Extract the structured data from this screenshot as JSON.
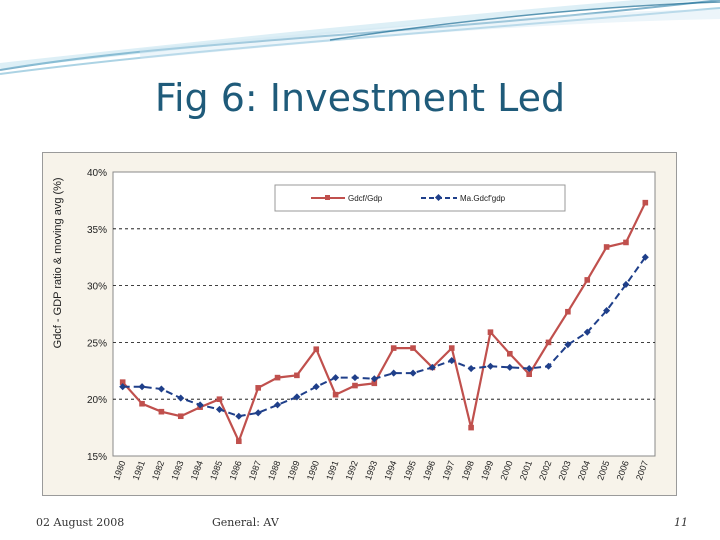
{
  "slide": {
    "title": "Fig 6: Investment Led",
    "footer_date": "02 August 2008",
    "footer_center": "General: AV",
    "page_number": "11"
  },
  "colors": {
    "title": "#1f5b7a",
    "series_gdcf": "#c0504d",
    "series_ma": "#1f3f8a",
    "swoosh": "#2a7fa8"
  },
  "chart_data": {
    "type": "line",
    "ylabel": "Gdcf - GDP ratio & moving avg (%)",
    "ylim": [
      15,
      40
    ],
    "yticks": [
      15,
      20,
      25,
      30,
      35,
      40
    ],
    "ytick_labels": [
      "15%",
      "20%",
      "25%",
      "30%",
      "35%",
      "40%"
    ],
    "grid": true,
    "legend_position": "top-right",
    "x": [
      "1980",
      "1981",
      "1982",
      "1983",
      "1984",
      "1985",
      "1986",
      "1987",
      "1988",
      "1989",
      "1990",
      "1991",
      "1992",
      "1993",
      "1994",
      "1995",
      "1996",
      "1997",
      "1998",
      "1999",
      "2000",
      "2001",
      "2002",
      "2003",
      "2004",
      "2005",
      "2006",
      "2007"
    ],
    "series": [
      {
        "name": "Gdcf/Gdp",
        "values": [
          21.5,
          19.6,
          18.9,
          18.5,
          19.3,
          20.0,
          16.3,
          21.0,
          21.9,
          22.1,
          24.4,
          20.4,
          21.2,
          21.4,
          24.5,
          24.5,
          22.8,
          24.5,
          17.5,
          25.9,
          24.0,
          22.2,
          25.0,
          27.7,
          30.5,
          33.4,
          33.8,
          37.3
        ]
      },
      {
        "name": "Ma.Gdcf'gdp",
        "values": [
          21.1,
          21.1,
          20.9,
          20.1,
          19.5,
          19.1,
          18.5,
          18.8,
          19.5,
          20.2,
          21.1,
          21.9,
          21.9,
          21.8,
          22.3,
          22.3,
          22.8,
          23.4,
          22.7,
          22.9,
          22.8,
          22.7,
          22.9,
          24.8,
          25.9,
          27.8,
          30.1,
          32.5
        ]
      }
    ]
  }
}
